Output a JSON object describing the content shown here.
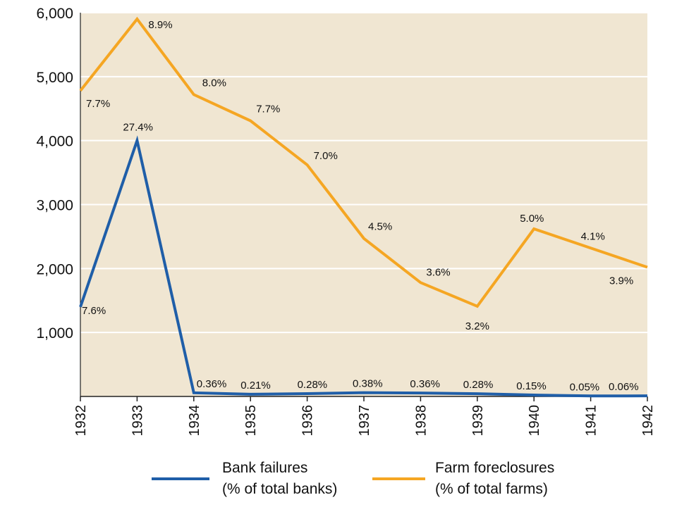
{
  "chart_data": {
    "type": "line",
    "x": [
      "1932",
      "1933",
      "1934",
      "1935",
      "1936",
      "1937",
      "1938",
      "1939",
      "1940",
      "1941",
      "1942"
    ],
    "y_ticks": [
      "1,000",
      "2,000",
      "3,000",
      "4,000",
      "5,000",
      "6,000"
    ],
    "ylim": [
      0,
      6000
    ],
    "grid": true,
    "legend_position": "bottom",
    "colors": {
      "plot_background": "#f0e6d2",
      "grid": "#ffffff",
      "axis": "#222222"
    },
    "series": [
      {
        "name": "Bank failures",
        "name_line2": "(% of total banks)",
        "color": "#1f5ea8",
        "values": [
          1400,
          4000,
          57,
          34,
          44,
          59,
          54,
          42,
          22,
          8,
          9
        ],
        "labels": [
          "7.6%",
          "27.4%",
          "0.36%",
          "0.21%",
          "0.28%",
          "0.38%",
          "0.36%",
          "0.28%",
          "0.15%",
          "0.05%",
          "0.06%"
        ]
      },
      {
        "name": "Farm foreclosures",
        "name_line2": "(% of total farms)",
        "color": "#f5a623",
        "values": [
          4780,
          5900,
          4720,
          4310,
          3620,
          2470,
          1780,
          1410,
          2620,
          2320,
          2020
        ],
        "labels": [
          "7.7%",
          "8.9%",
          "8.0%",
          "7.7%",
          "7.0%",
          "4.5%",
          "3.6%",
          "3.2%",
          "5.0%",
          "4.1%",
          "3.9%"
        ]
      }
    ]
  }
}
